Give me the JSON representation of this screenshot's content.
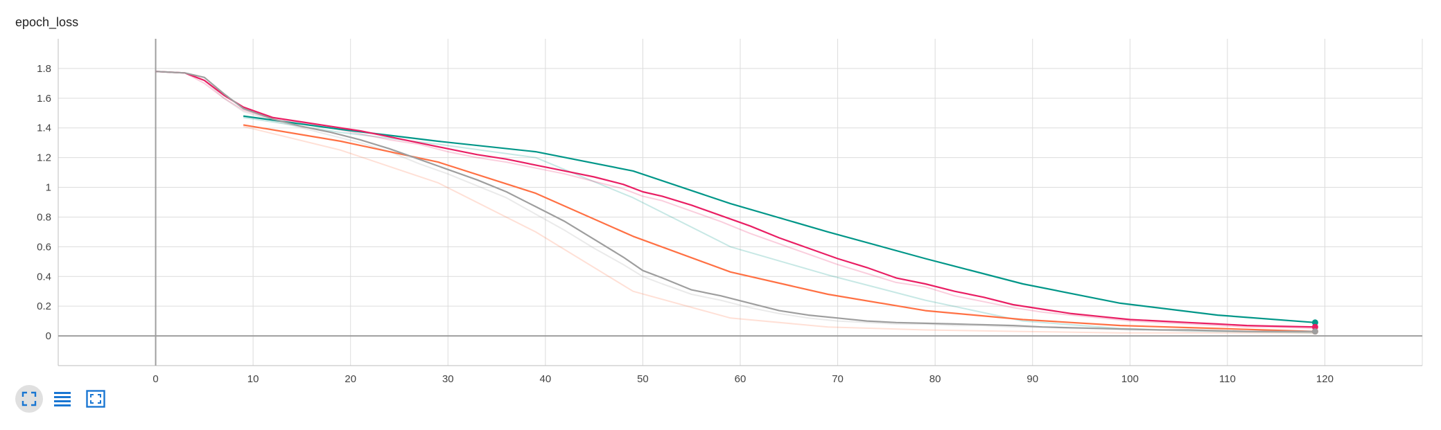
{
  "toolbar": {
    "icons": [
      "fullscreen-icon",
      "toggle-log-scale-icon",
      "fit-domain-icon"
    ],
    "active": "fullscreen-icon",
    "icon_color": "#1976d2"
  },
  "chart_data": {
    "type": "line",
    "title": "epoch_loss",
    "xlabel": "",
    "ylabel": "",
    "xlim": [
      -10,
      130
    ],
    "ylim": [
      -0.2,
      2.0
    ],
    "x_ticks": [
      0,
      10,
      20,
      30,
      40,
      50,
      60,
      70,
      80,
      90,
      100,
      110,
      120
    ],
    "y_ticks": [
      0,
      0.2,
      0.4,
      0.6,
      0.8,
      1,
      1.2,
      1.4,
      1.6,
      1.8
    ],
    "y_tick_labels": [
      "0",
      "0.2",
      "0.4",
      "0.6",
      "0.8",
      "1",
      "1.2",
      "1.4",
      "1.6",
      "1.8"
    ],
    "grid": true,
    "legend": "none",
    "series": [
      {
        "color": "#009688",
        "x": [
          9,
          19,
          29,
          39,
          49,
          59,
          69,
          79,
          89,
          99,
          109,
          119
        ],
        "smoothed": [
          1.48,
          1.39,
          1.31,
          1.24,
          1.11,
          0.89,
          0.7,
          0.52,
          0.35,
          0.22,
          0.14,
          0.09
        ],
        "raw": [
          1.47,
          1.37,
          1.29,
          1.2,
          0.93,
          0.6,
          0.41,
          0.24,
          0.1,
          0.05,
          0.03,
          0.02
        ]
      },
      {
        "color": "#ff7043",
        "x": [
          9,
          19,
          29,
          39,
          49,
          59,
          69,
          79,
          89,
          99,
          109,
          119
        ],
        "smoothed": [
          1.42,
          1.31,
          1.17,
          0.96,
          0.67,
          0.43,
          0.28,
          0.17,
          0.11,
          0.07,
          0.05,
          0.03
        ],
        "raw": [
          1.41,
          1.25,
          1.03,
          0.7,
          0.3,
          0.12,
          0.06,
          0.04,
          0.03,
          0.02,
          0.02,
          0.02
        ]
      },
      {
        "color": "#e91e63",
        "x": [
          0,
          3,
          5,
          7,
          9,
          12,
          15,
          18,
          21,
          24,
          27,
          30,
          33,
          36,
          39,
          42,
          45,
          48,
          50,
          52,
          55,
          58,
          61,
          64,
          67,
          70,
          73,
          76,
          79,
          82,
          85,
          88,
          91,
          94,
          97,
          100,
          103,
          106,
          109,
          112,
          115,
          119
        ],
        "smoothed": [
          1.78,
          1.77,
          1.72,
          1.62,
          1.54,
          1.47,
          1.44,
          1.41,
          1.38,
          1.34,
          1.3,
          1.26,
          1.22,
          1.19,
          1.15,
          1.11,
          1.07,
          1.02,
          0.97,
          0.94,
          0.88,
          0.81,
          0.74,
          0.66,
          0.59,
          0.52,
          0.46,
          0.39,
          0.35,
          0.3,
          0.26,
          0.21,
          0.18,
          0.15,
          0.13,
          0.11,
          0.1,
          0.09,
          0.08,
          0.07,
          0.065,
          0.06
        ],
        "raw": [
          1.78,
          1.77,
          1.7,
          1.6,
          1.52,
          1.46,
          1.43,
          1.4,
          1.36,
          1.32,
          1.29,
          1.24,
          1.2,
          1.17,
          1.13,
          1.09,
          1.04,
          0.99,
          0.94,
          0.91,
          0.84,
          0.77,
          0.69,
          0.62,
          0.55,
          0.48,
          0.42,
          0.36,
          0.33,
          0.27,
          0.23,
          0.19,
          0.16,
          0.14,
          0.12,
          0.1,
          0.09,
          0.08,
          0.07,
          0.06,
          0.06,
          0.05
        ]
      },
      {
        "color": "#9e9e9e",
        "x": [
          0,
          3,
          5,
          7,
          9,
          12,
          15,
          18,
          21,
          24,
          27,
          30,
          33,
          36,
          39,
          42,
          45,
          48,
          50,
          52,
          55,
          58,
          61,
          64,
          67,
          70,
          73,
          76,
          79,
          82,
          85,
          88,
          91,
          94,
          97,
          100,
          103,
          106,
          109,
          112,
          115,
          119
        ],
        "smoothed": [
          1.78,
          1.77,
          1.74,
          1.63,
          1.53,
          1.46,
          1.41,
          1.37,
          1.32,
          1.26,
          1.19,
          1.12,
          1.05,
          0.97,
          0.87,
          0.77,
          0.65,
          0.53,
          0.44,
          0.39,
          0.31,
          0.27,
          0.22,
          0.17,
          0.14,
          0.12,
          0.1,
          0.09,
          0.085,
          0.08,
          0.075,
          0.07,
          0.06,
          0.055,
          0.05,
          0.045,
          0.04,
          0.04,
          0.035,
          0.03,
          0.03,
          0.03
        ],
        "raw": [
          1.78,
          1.77,
          1.72,
          1.6,
          1.51,
          1.45,
          1.4,
          1.35,
          1.3,
          1.24,
          1.16,
          1.09,
          1.01,
          0.93,
          0.82,
          0.71,
          0.59,
          0.48,
          0.4,
          0.35,
          0.28,
          0.24,
          0.19,
          0.15,
          0.12,
          0.1,
          0.09,
          0.08,
          0.08,
          0.07,
          0.07,
          0.06,
          0.06,
          0.05,
          0.05,
          0.04,
          0.04,
          0.03,
          0.03,
          0.03,
          0.03,
          0.025
        ]
      }
    ]
  }
}
